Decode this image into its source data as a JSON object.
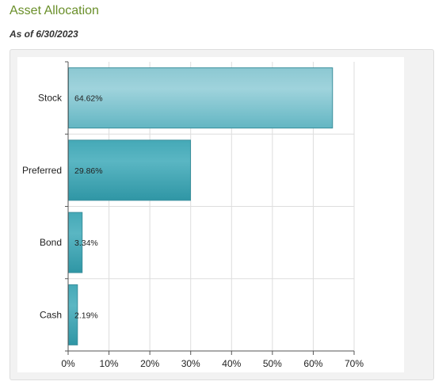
{
  "header": {
    "title": "Asset Allocation",
    "as_of": "As of 6/30/2023"
  },
  "chart_data": {
    "type": "bar",
    "orientation": "horizontal",
    "title": "",
    "xlabel": "",
    "ylabel": "",
    "categories": [
      "Stock",
      "Preferred",
      "Bond",
      "Cash"
    ],
    "values": [
      64.62,
      29.86,
      3.34,
      2.19
    ],
    "value_labels": [
      "64.62%",
      "29.86%",
      "3.34%",
      "2.19%"
    ],
    "xlim": [
      0,
      70
    ],
    "x_ticks": [
      0,
      10,
      20,
      30,
      40,
      50,
      60,
      70
    ],
    "x_tick_labels": [
      "0%",
      "10%",
      "20%",
      "30%",
      "40%",
      "50%",
      "60%",
      "70%"
    ],
    "grid": true,
    "legend": "none",
    "colors": {
      "bar_light": "#92ccd6",
      "bar_dark": "#3a9fae",
      "bar_stroke": "#3a8f9c",
      "grid": "#dddddd",
      "axis": "#555555",
      "title": "#6a8f2a",
      "panel": "#f2f2f2"
    }
  }
}
